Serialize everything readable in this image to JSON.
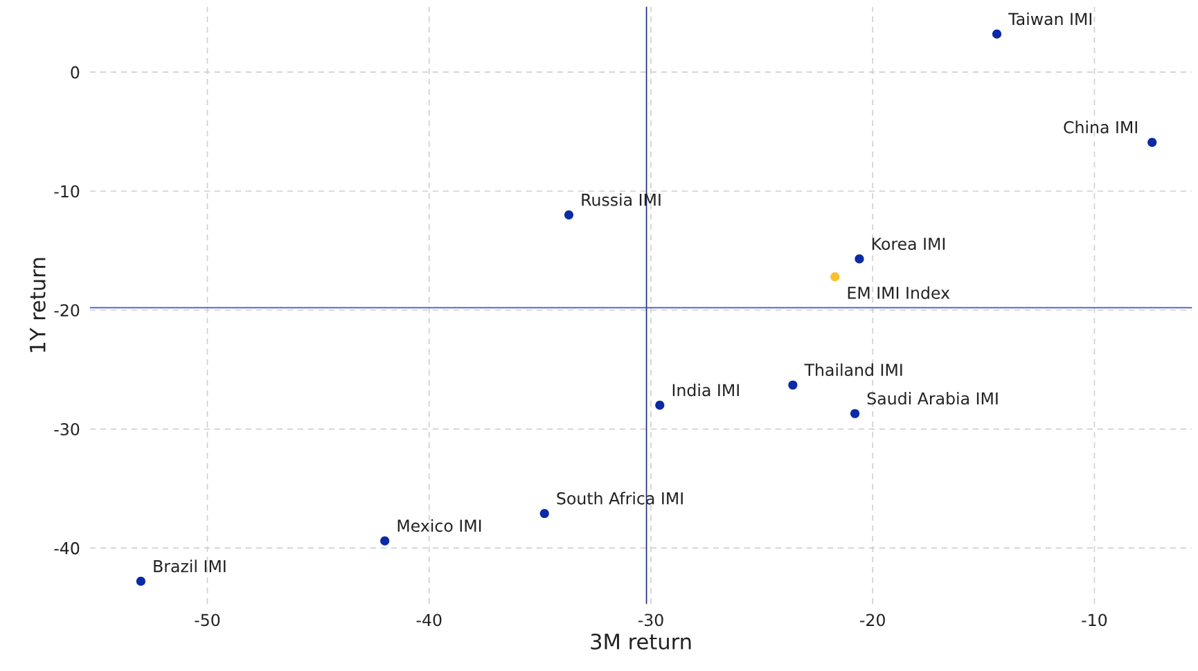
{
  "chart_data": {
    "type": "scatter",
    "xlabel": "3M return",
    "ylabel": "1Y return",
    "xlim": [
      -55.3,
      -5.6
    ],
    "ylim": [
      -44.7,
      5.5
    ],
    "xticks": [
      -50,
      -40,
      -30,
      -20,
      -10
    ],
    "yticks": [
      -40,
      -30,
      -20,
      -10,
      0
    ],
    "grid": true,
    "marker": "circle",
    "series": [
      {
        "color": "#0a2aa6",
        "x": [
          -14.4,
          -7.4,
          -33.7,
          -20.6,
          -23.6,
          -20.8,
          -29.6,
          -34.8,
          -42.0,
          -53.0
        ],
        "values": [
          3.2,
          -5.9,
          -12.0,
          -15.7,
          -26.3,
          -28.7,
          -28.0,
          -37.1,
          -39.4,
          -42.8
        ]
      },
      {
        "color": "#fbc02d",
        "x": [
          -21.7
        ],
        "values": [
          -17.2
        ]
      }
    ],
    "ref_lines": [
      {
        "axis": "x",
        "value": -30.2,
        "color": "#1a2a7a"
      },
      {
        "axis": "y",
        "value": -19.8,
        "color": "#3a55d0"
      }
    ],
    "annotations": [
      {
        "text": "Taiwan IMI",
        "x": -14.4,
        "y": 3.2
      },
      {
        "text": "China IMI",
        "x": -7.4,
        "y": -5.9
      },
      {
        "text": "Russia IMI",
        "x": -33.7,
        "y": -12.0
      },
      {
        "text": "Korea IMI",
        "x": -20.6,
        "y": -15.7
      },
      {
        "text": "EM IMI Index",
        "x": -21.7,
        "y": -17.2
      },
      {
        "text": "Thailand IMI",
        "x": -23.6,
        "y": -26.3
      },
      {
        "text": "Saudi Arabia IMI",
        "x": -20.8,
        "y": -28.7
      },
      {
        "text": "India IMI",
        "x": -29.6,
        "y": -28.0
      },
      {
        "text": "South Africa IMI",
        "x": -34.8,
        "y": -37.1
      },
      {
        "text": "Mexico IMI",
        "x": -42.0,
        "y": -39.4
      },
      {
        "text": "Brazil IMI",
        "x": -53.0,
        "y": -42.8
      }
    ]
  }
}
